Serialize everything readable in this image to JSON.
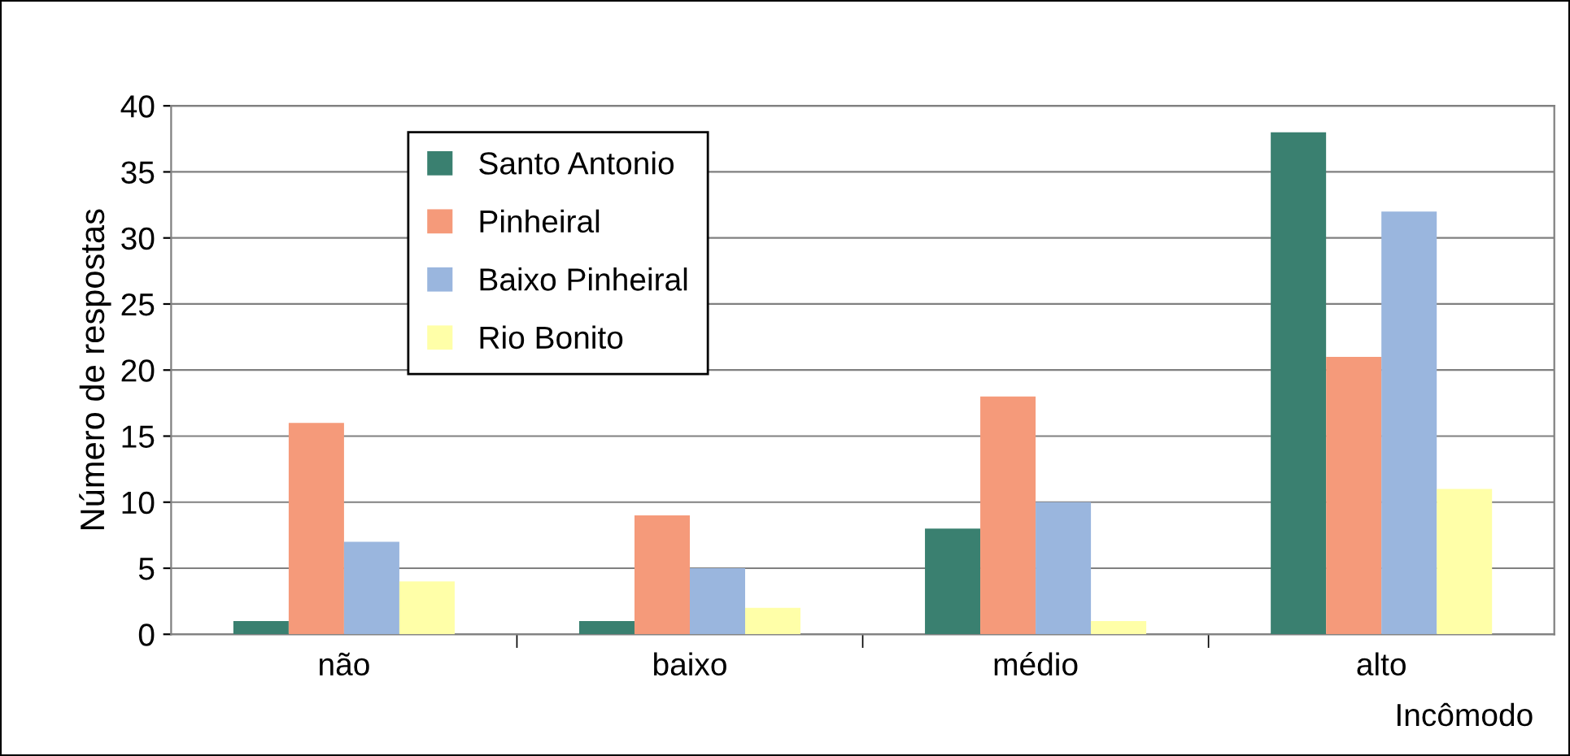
{
  "chart_data": {
    "type": "bar",
    "xlabel": "Incômodo",
    "ylabel": "Número de respostas",
    "categories": [
      "não",
      "baixo",
      "médio",
      "alto"
    ],
    "series": [
      {
        "name": "Santo Antonio",
        "color": "#3a8070",
        "values": [
          1,
          1,
          8,
          38
        ]
      },
      {
        "name": "Pinheiral",
        "color": "#f59a7a",
        "values": [
          16,
          9,
          18,
          21
        ]
      },
      {
        "name": "Baixo Pinheiral",
        "color": "#9ab6de",
        "values": [
          7,
          5,
          10,
          32
        ]
      },
      {
        "name": "Rio Bonito",
        "color": "#ffffa8",
        "values": [
          4,
          2,
          1,
          11
        ]
      }
    ],
    "ylim": [
      0,
      40
    ],
    "yticks": [
      0,
      5,
      10,
      15,
      20,
      25,
      30,
      35,
      40
    ],
    "grid": "y",
    "legend": "top left"
  }
}
